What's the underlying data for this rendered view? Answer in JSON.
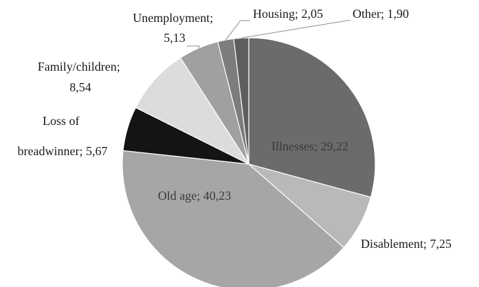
{
  "chart_data": {
    "type": "pie",
    "title": "",
    "slices": [
      {
        "name": "Illnesses",
        "value": 29.22,
        "label": "Illnesses; 29,22",
        "color": "#6b6b6b"
      },
      {
        "name": "Disablement",
        "value": 7.25,
        "label": "Disablement; 7,25",
        "color": "#b9b9b9"
      },
      {
        "name": "Old age",
        "value": 40.23,
        "label": "Old age; 40,23",
        "color": "#a6a6a6"
      },
      {
        "name": "Loss of breadwinner",
        "value": 5.67,
        "label_lines": [
          "Loss of",
          "breadwinner; 5,67"
        ],
        "color": "#141414"
      },
      {
        "name": "Family/children",
        "value": 8.54,
        "label_lines": [
          "Family/children;",
          "8,54"
        ],
        "color": "#dcdcdc"
      },
      {
        "name": "Unemployment",
        "value": 5.13,
        "label_lines": [
          "Unemployment;",
          "5,13"
        ],
        "color": "#a0a0a0"
      },
      {
        "name": "Housing",
        "value": 2.05,
        "label": "Housing; 2,05",
        "color": "#7d7d7d"
      },
      {
        "name": "Other",
        "value": 1.9,
        "label": "Other; 1,90",
        "color": "#5e5e5e"
      }
    ],
    "start_angle_deg": 0,
    "direction": "clockwise",
    "legend": "none",
    "data_labels": "category name and value"
  }
}
